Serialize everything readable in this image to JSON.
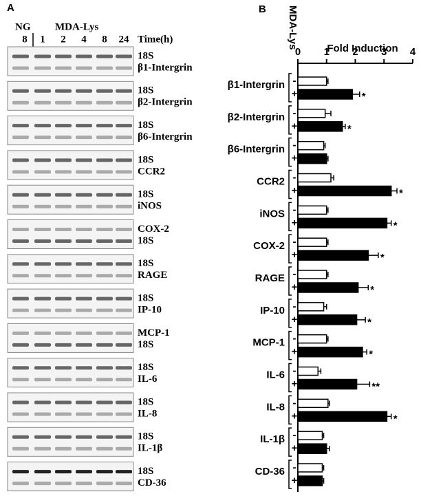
{
  "panel_a": {
    "label": "A",
    "group_labels": [
      "NG",
      "MDA-Lys"
    ],
    "lanes": [
      "8",
      "1",
      "2",
      "4",
      "8",
      "24"
    ],
    "time_label": "Time(h)",
    "gels": [
      [
        "18S",
        "β1-Intergrin"
      ],
      [
        "18S",
        "β2-Intergrin"
      ],
      [
        "18S",
        "β6-Intergrin"
      ],
      [
        "18S",
        "CCR2"
      ],
      [
        "18S",
        "iNOS"
      ],
      [
        "COX-2",
        "18S"
      ],
      [
        "18S",
        "RAGE"
      ],
      [
        "18S",
        "IP-10"
      ],
      [
        "MCP-1",
        "18S"
      ],
      [
        "18S",
        "IL-6"
      ],
      [
        "18S",
        "IL-8"
      ],
      [
        "18S",
        "IL-1β"
      ],
      [
        "18S",
        "CD-36"
      ]
    ]
  },
  "chart_data": {
    "type": "bar",
    "orientation": "horizontal",
    "panel_label": "B",
    "x_label": "Fold Induction",
    "group_label": "MDA-Lys",
    "categories": [
      "β1-Intergrin",
      "β2-Intergrin",
      "β6-Intergrin",
      "CCR2",
      "iNOS",
      "COX-2",
      "RAGE",
      "IP-10",
      "MCP-1",
      "IL-6",
      "IL-8",
      "IL-1β",
      "CD-36"
    ],
    "series": [
      {
        "name": "-",
        "color": "#ffffff",
        "values": [
          1.0,
          0.95,
          0.9,
          1.15,
          1.0,
          1.0,
          1.0,
          0.9,
          1.0,
          0.7,
          1.05,
          0.85,
          0.85
        ],
        "errors": [
          0.05,
          0.2,
          0.05,
          0.1,
          0.05,
          0.05,
          0.05,
          0.1,
          0.05,
          0.1,
          0.05,
          0.05,
          0.05
        ]
      },
      {
        "name": "+",
        "color": "#000000",
        "values": [
          1.9,
          1.55,
          1.0,
          3.25,
          3.1,
          2.45,
          2.1,
          2.05,
          2.25,
          2.05,
          3.1,
          1.0,
          0.85
        ],
        "errors": [
          0.25,
          0.1,
          0.05,
          0.2,
          0.15,
          0.35,
          0.35,
          0.3,
          0.15,
          0.45,
          0.15,
          0.1,
          0.05
        ]
      }
    ],
    "significance": [
      "*",
      "*",
      null,
      "*",
      "*",
      "*",
      "*",
      "*",
      "*",
      "**",
      "*",
      null,
      null
    ],
    "xlim": [
      0,
      4
    ],
    "xticks": [
      0,
      1,
      2,
      3,
      4
    ]
  }
}
